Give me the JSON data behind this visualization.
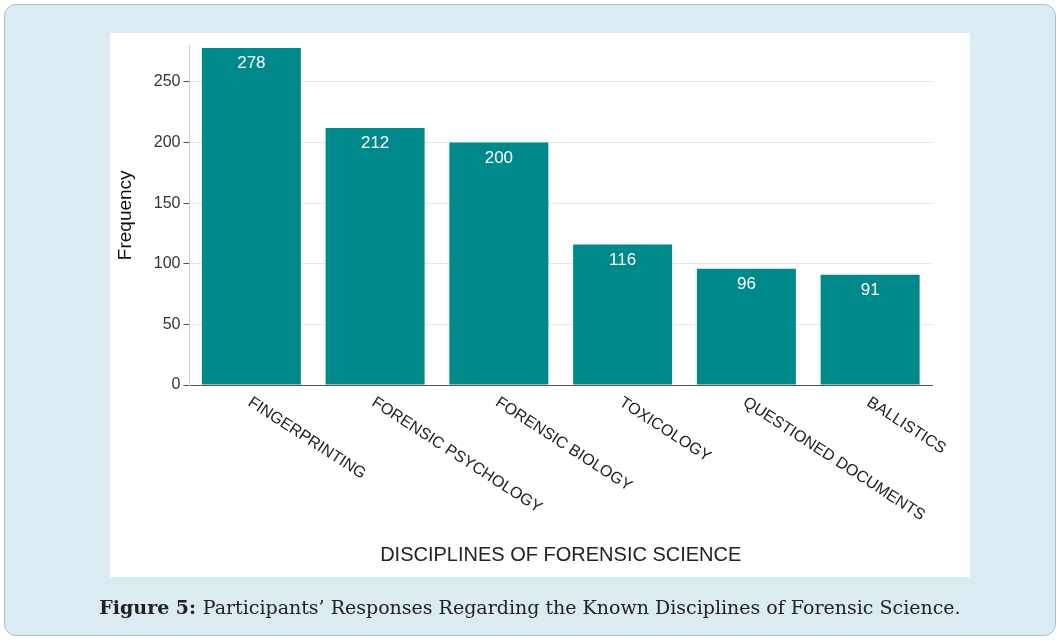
{
  "chart_data": {
    "type": "bar",
    "xlabel": "DISCIPLINES OF FORENSIC SCIENCE",
    "ylabel": "Frequency",
    "categories": [
      "FINGERPRINTING",
      "FORENSIC PSYCHOLOGY",
      "FORENSIC BIOLOGY",
      "TOXICOLOGY",
      "QUESTIONED DOCUMENTS",
      "BALLISTICS"
    ],
    "values": [
      278,
      212,
      200,
      116,
      96,
      91
    ],
    "color": "#00898a",
    "ylim": [
      0,
      280
    ],
    "yticks": [
      0,
      50,
      100,
      150,
      200,
      250
    ],
    "grid": "y",
    "data_labels": true,
    "legend": false,
    "annotations": [
      "Figure 5:",
      "Participants’ Responses Regarding the Known Disciplines of Forensic Science."
    ]
  }
}
